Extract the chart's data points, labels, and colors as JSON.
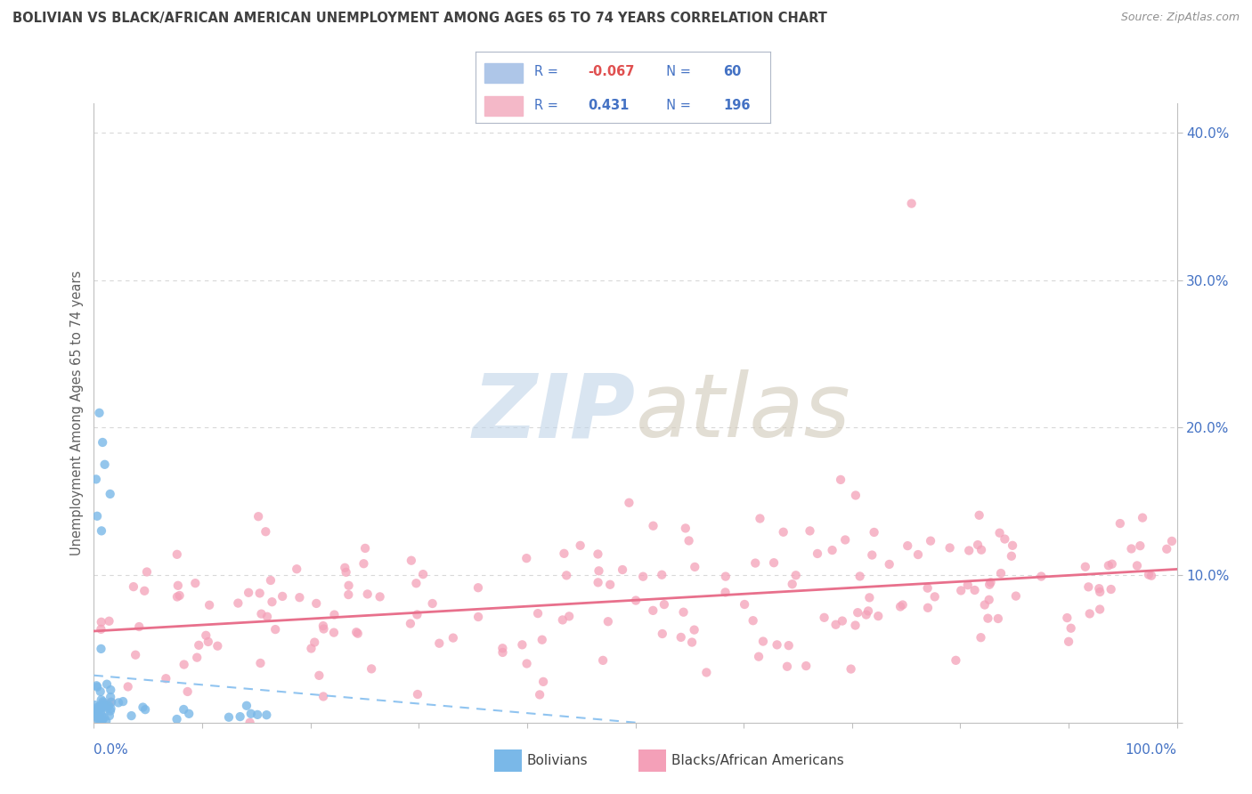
{
  "title": "BOLIVIAN VS BLACK/AFRICAN AMERICAN UNEMPLOYMENT AMONG AGES 65 TO 74 YEARS CORRELATION CHART",
  "source": "Source: ZipAtlas.com",
  "ylabel": "Unemployment Among Ages 65 to 74 years",
  "xlim": [
    0.0,
    1.0
  ],
  "ylim": [
    0.0,
    0.42
  ],
  "ytick_positions": [
    0.0,
    0.1,
    0.2,
    0.3,
    0.4
  ],
  "ytick_labels": [
    "",
    "10.0%",
    "20.0%",
    "30.0%",
    "40.0%"
  ],
  "bolivian_color": "#7ab8e8",
  "black_color": "#f4a0b8",
  "trend_bolivian_color": "#90c4f0",
  "trend_black_color": "#e8708c",
  "watermark": "ZIPatlas",
  "watermark_color_zip": "#c0d4e8",
  "watermark_color_atlas": "#d0c8b8",
  "bolivian_R": -0.067,
  "bolivian_N": 60,
  "black_R": 0.431,
  "black_N": 196,
  "legend_bolivians": "Bolivians",
  "legend_blacks": "Blacks/African Americans",
  "background_color": "#ffffff",
  "grid_color": "#d8d8d8",
  "tick_color": "#4472c4",
  "title_color": "#404040",
  "source_color": "#909090",
  "ylabel_color": "#606060",
  "legend_box_color": "#aec6e8",
  "legend_box_color2": "#f4b8c8",
  "legend_text_color": "#4472c4",
  "trend_bolivian_start_x": 0.0,
  "trend_bolivian_end_x": 0.5,
  "trend_bolivian_start_y": 0.032,
  "trend_bolivian_end_y": 0.0,
  "trend_black_start_x": 0.0,
  "trend_black_end_x": 1.0,
  "trend_black_start_y": 0.062,
  "trend_black_end_y": 0.104
}
